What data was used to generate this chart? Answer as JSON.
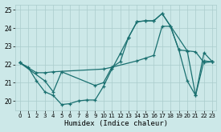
{
  "xlabel": "Humidex (Indice chaleur)",
  "xlim": [
    -0.5,
    23.5
  ],
  "ylim": [
    19.5,
    25.3
  ],
  "yticks": [
    20,
    21,
    22,
    23,
    24,
    25
  ],
  "xticks": [
    0,
    1,
    2,
    3,
    4,
    5,
    6,
    7,
    8,
    9,
    10,
    11,
    12,
    13,
    14,
    15,
    16,
    17,
    18,
    19,
    20,
    21,
    22,
    23
  ],
  "bg_color": "#cce8e8",
  "grid_color": "#aacccc",
  "line_color": "#1a7070",
  "series1_x": [
    0,
    1,
    2,
    3,
    4,
    5,
    6,
    7,
    8,
    9,
    10,
    11,
    12,
    13,
    14,
    15,
    16,
    17,
    18,
    19,
    20,
    21,
    22,
    23
  ],
  "series1_y": [
    22.1,
    21.85,
    21.1,
    20.5,
    20.3,
    19.8,
    19.85,
    20.0,
    20.05,
    20.05,
    20.8,
    21.75,
    22.6,
    23.5,
    24.35,
    24.4,
    24.4,
    24.8,
    24.1,
    22.8,
    21.1,
    20.3,
    22.2,
    22.15
  ],
  "series2_x": [
    0,
    2,
    3,
    4,
    10,
    11,
    14,
    15,
    16,
    17,
    18,
    19,
    20,
    21,
    22,
    23
  ],
  "series2_y": [
    22.1,
    21.55,
    21.55,
    21.6,
    21.75,
    21.85,
    22.2,
    22.35,
    22.5,
    24.1,
    24.1,
    22.8,
    22.75,
    22.7,
    22.1,
    22.15
  ],
  "series3_x": [
    0,
    3,
    4,
    5,
    9,
    10,
    11,
    12,
    13,
    14,
    15,
    16,
    17,
    20,
    21,
    22,
    23
  ],
  "series3_y": [
    22.1,
    21.1,
    20.5,
    21.6,
    20.85,
    21.0,
    21.85,
    22.15,
    23.5,
    24.35,
    24.4,
    24.4,
    24.8,
    22.75,
    20.3,
    22.65,
    22.15
  ]
}
